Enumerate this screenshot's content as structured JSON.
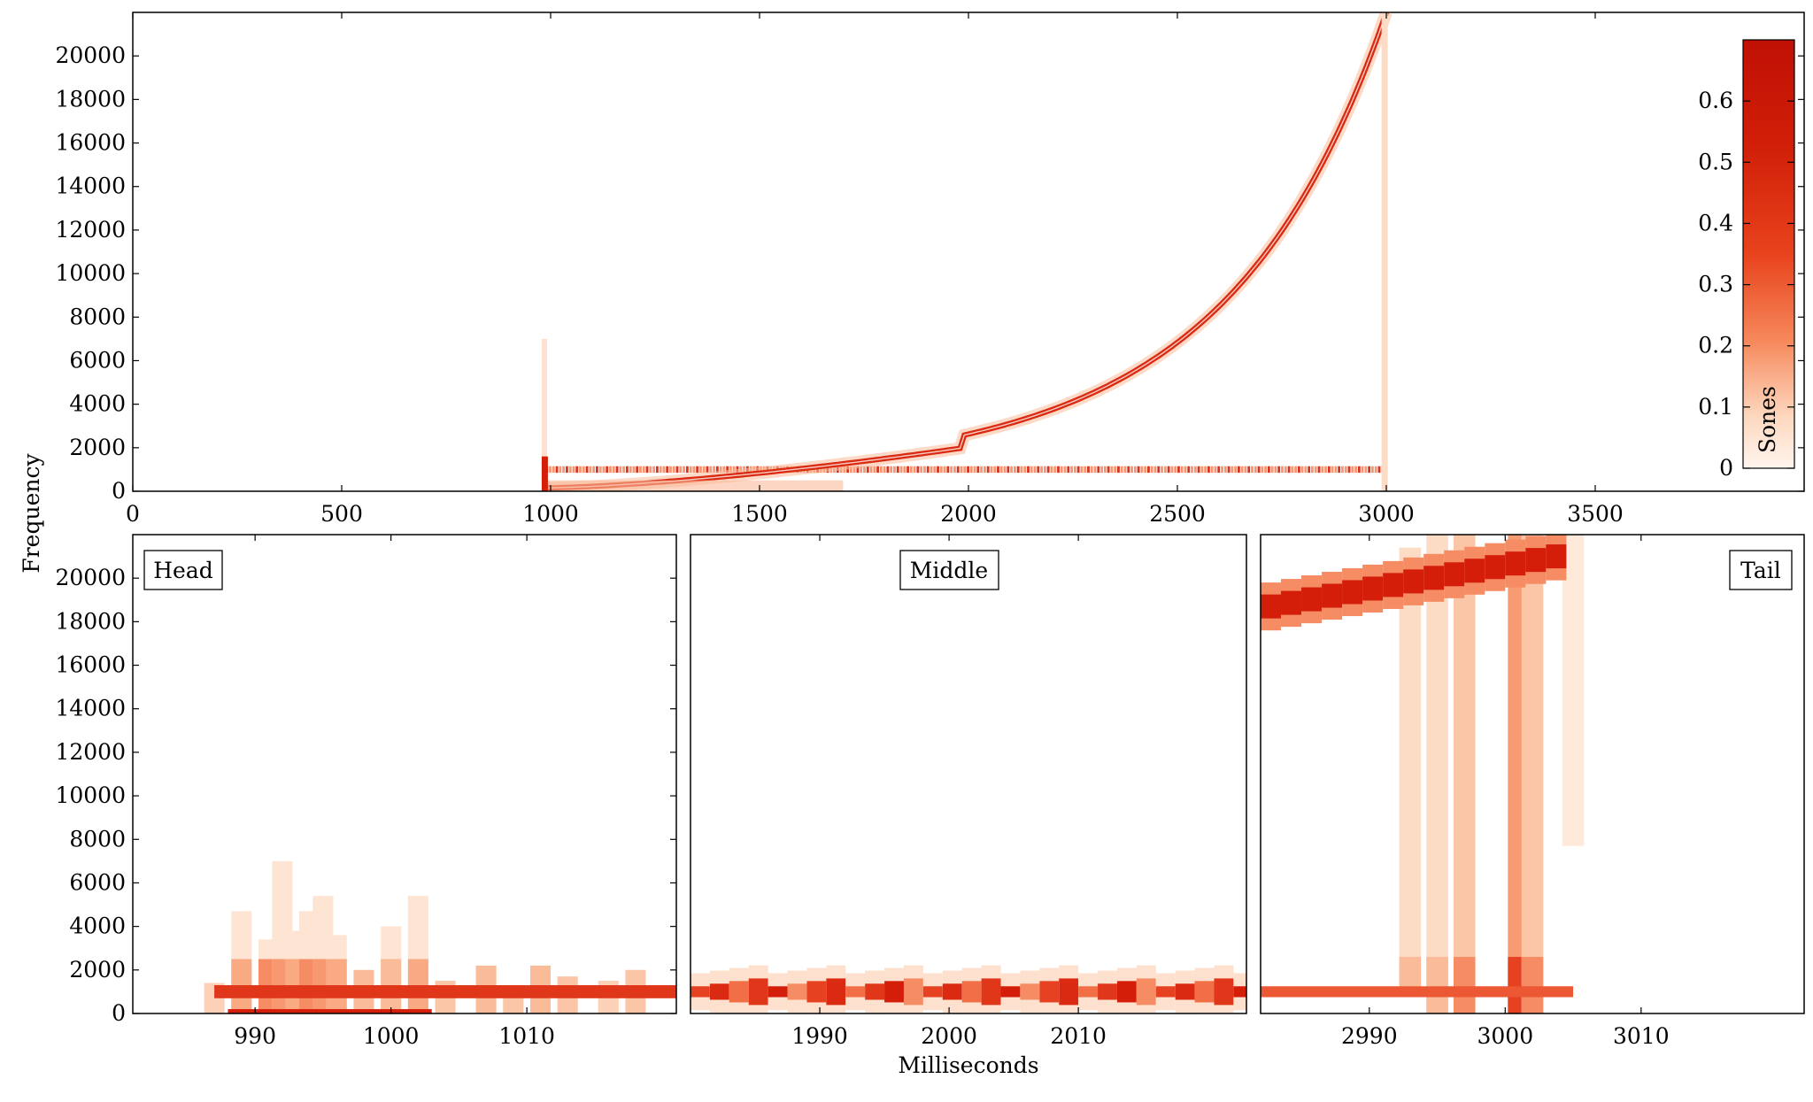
{
  "chart_data": [
    {
      "type": "heatmap",
      "panel": "overview",
      "ylabel": "Frequency",
      "xlim": [
        0,
        4000
      ],
      "ylim": [
        0,
        22000
      ],
      "xticks": [
        0,
        500,
        1000,
        1500,
        2000,
        2500,
        3000,
        3500
      ],
      "yticks": [
        0,
        2000,
        4000,
        6000,
        8000,
        10000,
        12000,
        14000,
        16000,
        18000,
        20000
      ],
      "colorbar": {
        "label": "Sones",
        "range": [
          0,
          0.7
        ],
        "ticks": [
          0,
          0.1,
          0.2,
          0.3,
          0.4,
          0.5,
          0.6
        ],
        "placement": "right-inside"
      },
      "features": {
        "sweep": {
          "t_start": 980,
          "t_end": 3000,
          "f_start": 20,
          "f_end": 22000,
          "curve": "exponential",
          "peak_sones": 0.6
        },
        "tone_1khz": {
          "t_start": 980,
          "t_end": 3000,
          "f": 1000,
          "peak_sones": 0.5
        },
        "onset_click": {
          "t": 985,
          "f_max": 7000
        },
        "offset_click": {
          "t": 2995,
          "f_max": 22000
        }
      }
    },
    {
      "type": "heatmap",
      "panel": "head",
      "label": "Head",
      "xlim": [
        981,
        1021
      ],
      "ylim": [
        0,
        22000
      ],
      "xticks": [
        990,
        1000,
        1010
      ],
      "yticks": [
        0,
        2000,
        4000,
        6000,
        8000,
        10000,
        12000,
        14000,
        16000,
        18000,
        20000
      ],
      "cells": [
        [
          987,
          1400,
          0.08
        ],
        [
          989,
          4700,
          0.15
        ],
        [
          991,
          3400,
          0.2
        ],
        [
          992,
          7000,
          0.18
        ],
        [
          993,
          3800,
          0.15
        ],
        [
          994,
          4700,
          0.2
        ],
        [
          995,
          5400,
          0.18
        ],
        [
          996,
          3600,
          0.15
        ],
        [
          998,
          2000,
          0.12
        ],
        [
          1000,
          4000,
          0.12
        ],
        [
          1002,
          5400,
          0.15
        ],
        [
          1004,
          1500,
          0.1
        ],
        [
          1007,
          2200,
          0.12
        ],
        [
          1009,
          1300,
          0.1
        ],
        [
          1011,
          2200,
          0.12
        ],
        [
          1013,
          1700,
          0.1
        ],
        [
          1016,
          1500,
          0.08
        ],
        [
          1018,
          2000,
          0.1
        ]
      ],
      "tone_f": 1000
    },
    {
      "type": "heatmap",
      "panel": "middle",
      "label": "Middle",
      "xlabel": "Milliseconds",
      "xlim": [
        1980,
        2023
      ],
      "ylim": [
        0,
        22000
      ],
      "xticks": [
        1990,
        2000,
        2010
      ],
      "tone_f": 1000
    },
    {
      "type": "heatmap",
      "panel": "tail",
      "label": "Tail",
      "xlim": [
        2982,
        3022
      ],
      "ylim": [
        0,
        22000
      ],
      "xticks": [
        2990,
        3000,
        3010
      ],
      "sweep": {
        "t0": 2982,
        "f0": 18700,
        "t1": 3003,
        "f1": 21000
      },
      "columns": [
        [
          2993,
          1000,
          21400,
          0.12
        ],
        [
          2995,
          0,
          22000,
          0.12
        ],
        [
          2997,
          0,
          22000,
          0.2
        ],
        [
          3001,
          0,
          22000,
          0.35
        ],
        [
          3002,
          0,
          22000,
          0.2
        ],
        [
          3005,
          7700,
          22000,
          0.06
        ]
      ],
      "tone_f": 1000
    }
  ]
}
